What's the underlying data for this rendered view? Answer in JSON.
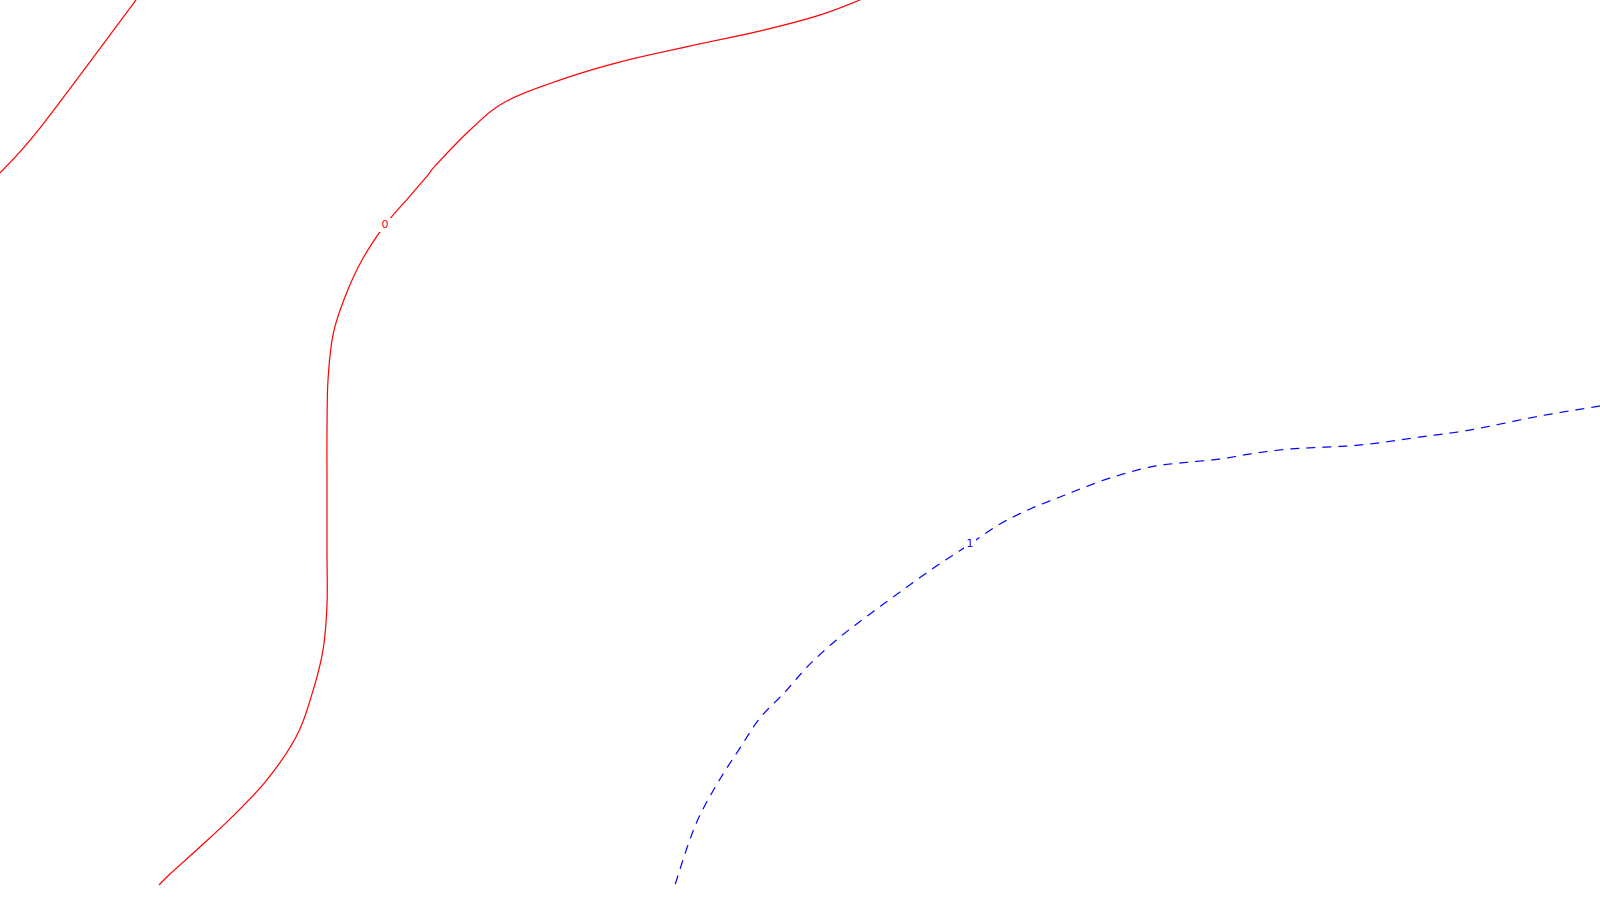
{
  "chart_data": {
    "type": "contour",
    "title": "",
    "xlabel": "",
    "ylabel": "",
    "grid": false,
    "legend": "none",
    "levels": [
      {
        "level_label": "0",
        "color": "#ff0000",
        "line_style": "solid",
        "segments": [
          [
            [
              0,
              173
            ],
            [
              40,
              128
            ],
            [
              136,
              0
            ]
          ],
          [
            [
              860,
              0
            ],
            [
              820,
              15
            ],
            [
              760,
              31
            ],
            [
              690,
              46
            ],
            [
              620,
              62
            ],
            [
              560,
              80
            ],
            [
              505,
              102
            ],
            [
              470,
              130
            ],
            [
              435,
              166
            ],
            [
              428,
              175
            ],
            [
              410,
              196
            ],
            [
              385,
              225
            ],
            [
              362,
              260
            ],
            [
              345,
              297
            ],
            [
              333,
              335
            ],
            [
              328,
              380
            ],
            [
              327,
              430
            ],
            [
              327,
              490
            ],
            [
              327,
              555
            ],
            [
              327,
              605
            ],
            [
              323,
              650
            ],
            [
              312,
              694
            ],
            [
              296,
              737
            ],
            [
              266,
              781
            ],
            [
              232,
              817
            ],
            [
              201,
              846
            ],
            [
              170,
              874
            ],
            [
              159,
              885
            ]
          ]
        ]
      },
      {
        "level_label": "1",
        "color": "#0000ff",
        "line_style": "dashed",
        "segments": [
          [
            [
              1600,
              406
            ],
            [
              1540,
              416
            ],
            [
              1470,
              430
            ],
            [
              1420,
              437
            ],
            [
              1360,
              445
            ],
            [
              1290,
              449
            ],
            [
              1250,
              454
            ],
            [
              1220,
              459
            ],
            [
              1180,
              463
            ],
            [
              1150,
              467
            ],
            [
              1110,
              478
            ],
            [
              1075,
              491
            ],
            [
              1060,
              497
            ],
            [
              1030,
              509
            ],
            [
              1000,
              524
            ],
            [
              970,
              544
            ],
            [
              935,
              567
            ],
            [
              900,
              592
            ],
            [
              870,
              614
            ],
            [
              840,
              637
            ],
            [
              810,
              664
            ],
            [
              785,
              692
            ],
            [
              760,
              718
            ],
            [
              740,
              748
            ],
            [
              720,
              779
            ],
            [
              700,
              815
            ],
            [
              688,
              845
            ],
            [
              675,
              885
            ]
          ]
        ]
      }
    ]
  }
}
